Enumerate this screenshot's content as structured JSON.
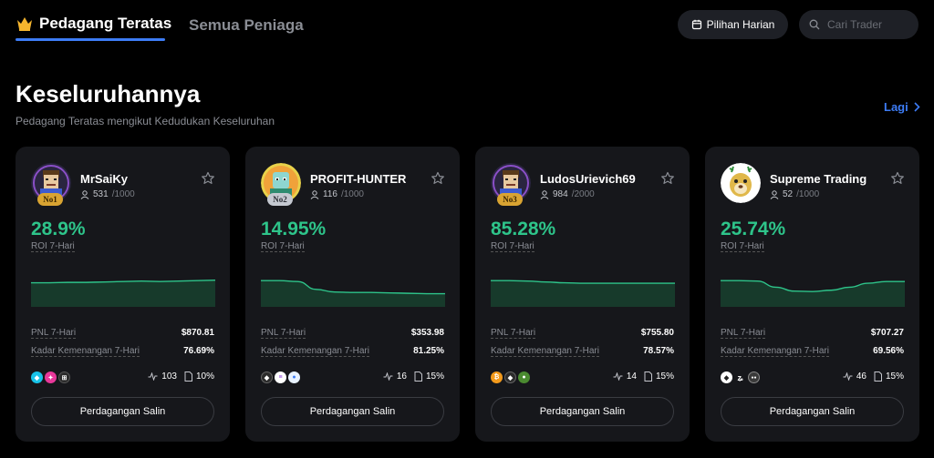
{
  "nav": {
    "active_tab": "Pedagang Teratas",
    "inactive_tab": "Semua Peniaga",
    "daily_pick_label": "Pilihan Harian",
    "search_placeholder": "Cari Trader"
  },
  "section": {
    "title": "Keseluruhannya",
    "subtitle": "Pedagang Teratas mengikut Kedudukan Keseluruhan",
    "more_label": "Lagi"
  },
  "labels": {
    "roi": "ROI 7-Hari",
    "pnl": "PNL 7-Hari",
    "win_rate": "Kadar Kemenangan 7-Hari",
    "copy_button": "Perdagangan Salin"
  },
  "colors": {
    "accent": "#3d7cf5",
    "positive": "#2ec48a",
    "card_bg": "#16171b"
  },
  "traders": [
    {
      "name": "MrSaiKy",
      "rank": "No1",
      "followers": "531",
      "followers_max": "/1000",
      "roi": "28.9%",
      "pnl": "$870.81",
      "win_rate": "76.69%",
      "trades": "103",
      "share": "10%",
      "coins": [
        "toncoin-icon",
        "pink-token-icon",
        "grid-token-icon"
      ],
      "sparkline": [
        0.45,
        0.45,
        0.44,
        0.44,
        0.43,
        0.42,
        0.41,
        0.42,
        0.41,
        0.4,
        0.39
      ]
    },
    {
      "name": "PROFIT-HUNTER",
      "rank": "No2",
      "followers": "116",
      "followers_max": "/1000",
      "roi": "14.95%",
      "pnl": "$353.98",
      "win_rate": "81.25%",
      "trades": "16",
      "share": "15%",
      "coins": [
        "ethereum-icon",
        "solana-icon",
        "water-drop-icon"
      ],
      "sparkline": [
        0.4,
        0.4,
        0.42,
        0.6,
        0.66,
        0.67,
        0.67,
        0.68,
        0.69,
        0.7,
        0.7
      ]
    },
    {
      "name": "LudosUrievich69",
      "rank": "No3",
      "followers": "984",
      "followers_max": "/2000",
      "roi": "85.28%",
      "pnl": "$755.80",
      "win_rate": "78.57%",
      "trades": "14",
      "share": "15%",
      "coins": [
        "bitcoin-icon",
        "ethereum-icon",
        "pepe-icon"
      ],
      "sparkline": [
        0.4,
        0.4,
        0.41,
        0.43,
        0.45,
        0.46,
        0.46,
        0.46,
        0.46,
        0.46,
        0.46
      ]
    },
    {
      "name": "Supreme Trading",
      "rank": "",
      "followers": "52",
      "followers_max": "/1000",
      "roi": "25.74%",
      "pnl": "$707.27",
      "win_rate": "69.56%",
      "trades": "46",
      "share": "15%",
      "coins": [
        "ethereum-icon",
        "zcash-icon",
        "mask-token-icon"
      ],
      "sparkline": [
        0.4,
        0.4,
        0.41,
        0.55,
        0.64,
        0.65,
        0.62,
        0.55,
        0.46,
        0.42,
        0.42
      ]
    }
  ]
}
